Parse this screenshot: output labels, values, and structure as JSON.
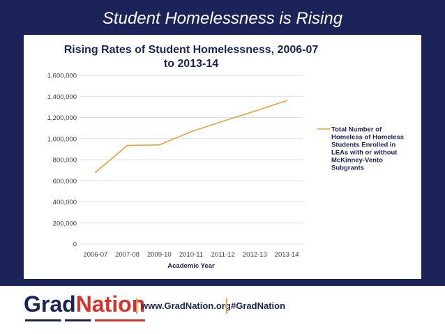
{
  "slide": {
    "title": "Student Homelessness is Rising"
  },
  "colors": {
    "navy": "#1b2358",
    "line": "#e8a13c",
    "grid": "#dedede",
    "red": "#d6342b",
    "axis_text": "#3a3a3a"
  },
  "chart_data": {
    "type": "line",
    "title": "Rising Rates of Student Homelessness, 2006-07 to 2013-14",
    "title_lines": [
      "Rising Rates of Student Homelessness, 2006-07",
      "to 2013-14"
    ],
    "xlabel": "Academic Year",
    "ylabel": "",
    "categories": [
      "2006-07",
      "2007-08",
      "2009-10",
      "2010-11",
      "2011-12",
      "2012-13",
      "2013-14"
    ],
    "y_ticks": [
      "0",
      "200,000",
      "400,000",
      "600,000",
      "800,000",
      "1,000,000",
      "1,200,000",
      "1,400,000",
      "1,600,000"
    ],
    "ylim": [
      0,
      1600000
    ],
    "grid": true,
    "legend_position": "right",
    "series": [
      {
        "name": "Total Number of Homeless of Homeless Students Enrolled in LEAs with or without McKinney-Vento Subgrants",
        "name_lines": [
          "Total Number of",
          "Homeless of Homeless",
          "Students Enrolled in",
          "LEAs with or without",
          "McKinney-Vento",
          "Subgrants"
        ],
        "values": [
          680000,
          935000,
          940000,
          1065000,
          1165000,
          1260000,
          1360000
        ]
      }
    ]
  },
  "footer": {
    "brand_part1": "Grad",
    "brand_part2": "Nation",
    "website": "www.GradNation.org",
    "hashtag": "#GradNation"
  }
}
